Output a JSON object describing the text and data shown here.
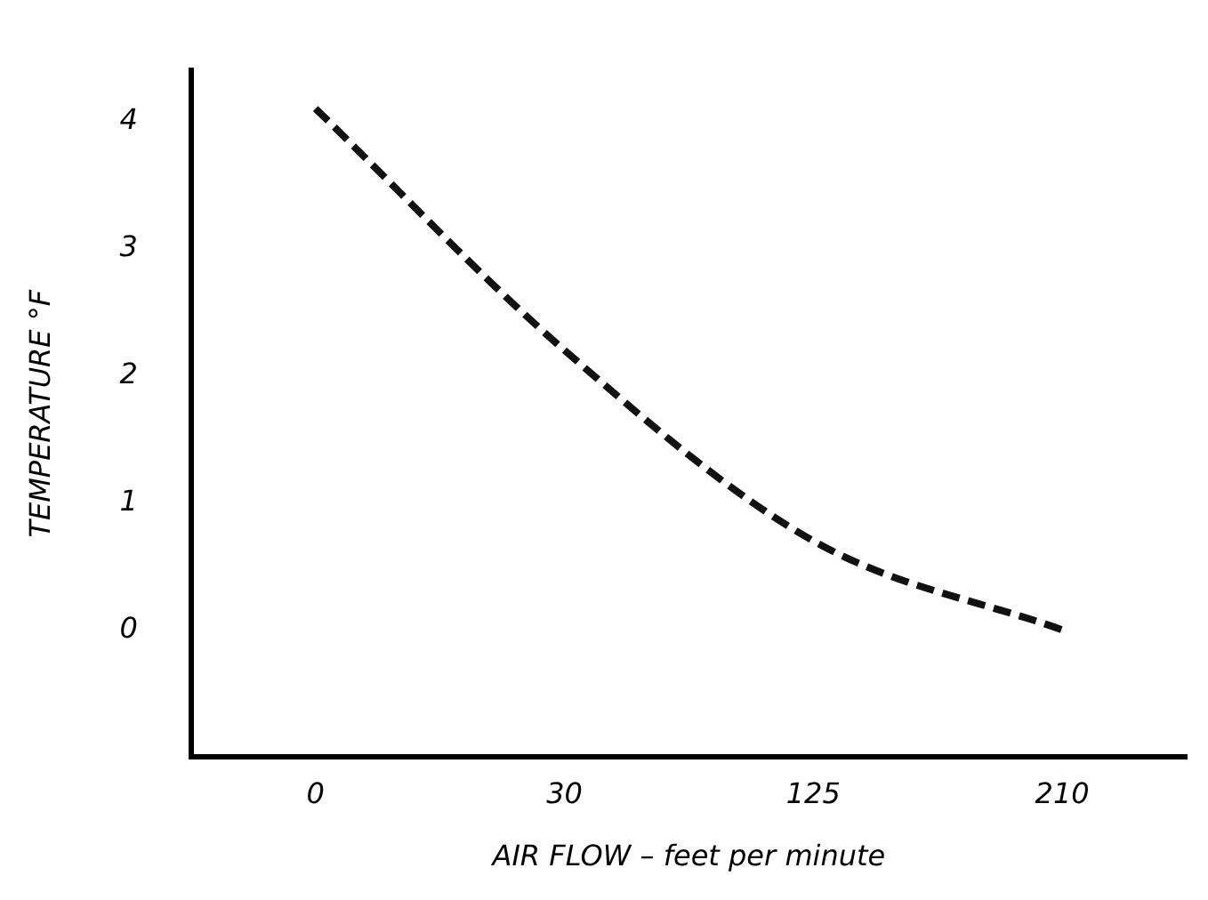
{
  "chart_data": {
    "type": "line",
    "xlabel": "AIR FLOW – feet per minute",
    "ylabel": "TEMPERATURE °F",
    "categories": [
      "0",
      "30",
      "125",
      "210"
    ],
    "series": [
      {
        "color": "#111111",
        "values": [
          4.1,
          2.2,
          0.7,
          0
        ]
      }
    ],
    "ylim": [
      -1,
      4.4
    ],
    "yticks": [
      0,
      1,
      2,
      3,
      4
    ],
    "grid": false,
    "legend": false,
    "marker": "none",
    "line_style": "dashed"
  }
}
